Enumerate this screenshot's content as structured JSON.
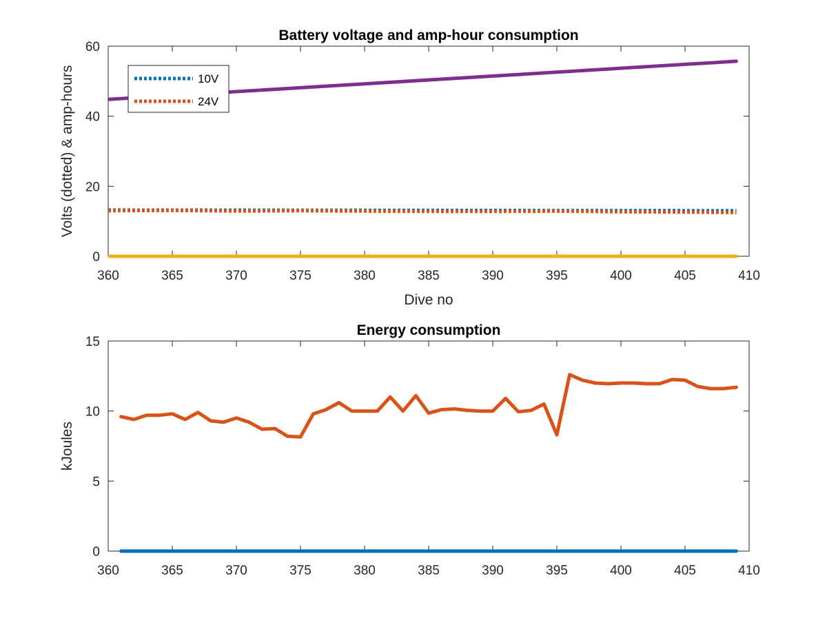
{
  "chart_data": [
    {
      "type": "line",
      "title": "Battery voltage and amp-hour consumption",
      "xlabel": "Dive no",
      "ylabel": "Volts (dotted) & amp-hours",
      "xlim": [
        360,
        410
      ],
      "ylim": [
        0,
        60
      ],
      "xticks": [
        360,
        365,
        370,
        375,
        380,
        385,
        390,
        395,
        400,
        405,
        410
      ],
      "yticks": [
        0,
        20,
        40,
        60
      ],
      "grid": false,
      "legend": "top-left",
      "series": [
        {
          "name": "10V",
          "style": "dotted",
          "color": "#0072BD",
          "x": [
            360,
            409
          ],
          "y": [
            13.2,
            13.0
          ]
        },
        {
          "name": "24V",
          "style": "dotted",
          "color": "#D95319",
          "x": [
            360,
            365,
            370,
            375,
            380,
            385,
            390,
            395,
            400,
            405,
            409
          ],
          "y": [
            13.0,
            13.1,
            12.9,
            13.0,
            12.9,
            12.8,
            12.8,
            12.9,
            12.7,
            12.6,
            12.5
          ]
        },
        {
          "style": "solid",
          "color": "#7E2F8E",
          "x": [
            360,
            409
          ],
          "y": [
            44.8,
            55.7
          ]
        },
        {
          "style": "solid",
          "color": "#EDB120",
          "x": [
            360,
            409
          ],
          "y": [
            0,
            0
          ]
        }
      ]
    },
    {
      "type": "line",
      "title": "Energy consumption",
      "xlabel": "",
      "ylabel": "kJoules",
      "xlim": [
        360,
        410
      ],
      "ylim": [
        0,
        15
      ],
      "xticks": [
        360,
        365,
        370,
        375,
        380,
        385,
        390,
        395,
        400,
        405,
        410
      ],
      "yticks": [
        0,
        5,
        10,
        15
      ],
      "grid": false,
      "series": [
        {
          "style": "solid",
          "color": "#D95319",
          "x": [
            361,
            362,
            363,
            364,
            365,
            366,
            367,
            368,
            369,
            370,
            371,
            372,
            373,
            374,
            375,
            376,
            377,
            378,
            379,
            380,
            381,
            382,
            383,
            384,
            385,
            386,
            387,
            388,
            389,
            390,
            391,
            392,
            393,
            394,
            395,
            396,
            397,
            398,
            399,
            400,
            401,
            402,
            403,
            404,
            405,
            406,
            407,
            408,
            409
          ],
          "y": [
            9.6,
            9.4,
            9.7,
            9.7,
            9.8,
            9.4,
            9.9,
            9.3,
            9.2,
            9.5,
            9.2,
            8.7,
            8.75,
            8.2,
            8.15,
            9.8,
            10.1,
            10.6,
            10.0,
            10.0,
            10.0,
            11.0,
            10.0,
            11.1,
            9.85,
            10.1,
            10.15,
            10.05,
            10.0,
            10.0,
            10.9,
            9.95,
            10.05,
            10.5,
            8.3,
            12.6,
            12.2,
            12.0,
            11.95,
            12.0,
            12.0,
            11.95,
            11.95,
            12.25,
            12.2,
            11.75,
            11.6,
            11.6,
            11.7
          ]
        },
        {
          "style": "solid",
          "color": "#0072BD",
          "x": [
            361,
            409
          ],
          "y": [
            0,
            0
          ]
        }
      ]
    }
  ]
}
